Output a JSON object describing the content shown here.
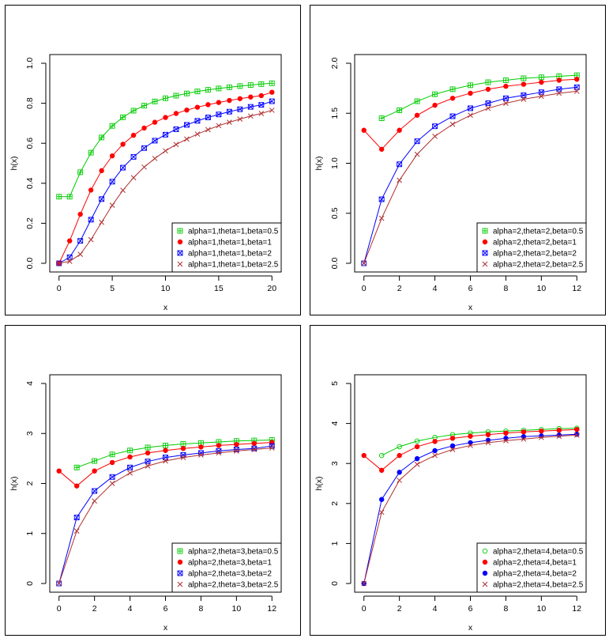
{
  "chart_data": [
    {
      "type": "line",
      "xlabel": "x",
      "ylabel": "h(x)",
      "xlim": [
        0,
        20
      ],
      "ylim": [
        0,
        1.0
      ],
      "xticks": [
        0,
        5,
        10,
        15,
        20
      ],
      "xtick_labels": [
        "0",
        "5",
        "10",
        "15",
        "20"
      ],
      "yticks": [
        0,
        0.2,
        0.4,
        0.6,
        0.8,
        1.0
      ],
      "ytick_labels": [
        "0.0",
        "0.2",
        "0.4",
        "0.6",
        "0.8",
        "1.0"
      ],
      "grid": false,
      "legend_position": "bottom-right",
      "x": [
        0,
        1,
        2,
        3,
        4,
        5,
        6,
        7,
        8,
        9,
        10,
        11,
        12,
        13,
        14,
        15,
        16,
        17,
        18,
        19,
        20
      ],
      "series": [
        {
          "name": "alpha=1,theta=1,beta=0.5",
          "color": "#00cc00",
          "marker": "square-plus",
          "values": [
            0.333,
            0.333,
            0.455,
            0.553,
            0.629,
            0.687,
            0.73,
            0.763,
            0.788,
            0.809,
            0.825,
            0.838,
            0.849,
            0.859,
            0.867,
            0.874,
            0.88,
            0.886,
            0.891,
            0.896,
            0.9
          ]
        },
        {
          "name": "alpha=1,theta=1,beta=1",
          "color": "#ff0000",
          "marker": "dot",
          "values": [
            0.0,
            0.112,
            0.245,
            0.366,
            0.463,
            0.537,
            0.595,
            0.64,
            0.676,
            0.705,
            0.729,
            0.749,
            0.766,
            0.78,
            0.793,
            0.804,
            0.814,
            0.823,
            0.831,
            0.838,
            0.855
          ]
        },
        {
          "name": "alpha=1,theta=1,beta=2",
          "color": "#0000ff",
          "marker": "square-x",
          "values": [
            0.0,
            0.03,
            0.112,
            0.218,
            0.321,
            0.408,
            0.478,
            0.532,
            0.576,
            0.613,
            0.643,
            0.67,
            0.692,
            0.712,
            0.729,
            0.744,
            0.758,
            0.77,
            0.782,
            0.792,
            0.81
          ]
        },
        {
          "name": "alpha=1,theta=1,beta=2.5",
          "color": "#b03030",
          "marker": "x",
          "values": [
            0.0,
            0.01,
            0.045,
            0.118,
            0.205,
            0.29,
            0.365,
            0.428,
            0.481,
            0.524,
            0.562,
            0.594,
            0.621,
            0.646,
            0.668,
            0.688,
            0.705,
            0.721,
            0.736,
            0.749,
            0.765
          ]
        }
      ]
    },
    {
      "type": "line",
      "xlabel": "x",
      "ylabel": "h(x)",
      "xlim": [
        0,
        12
      ],
      "ylim": [
        0,
        2.0
      ],
      "xticks": [
        0,
        2,
        4,
        6,
        8,
        10,
        12
      ],
      "xtick_labels": [
        "0",
        "2",
        "4",
        "6",
        "8",
        "10",
        "12"
      ],
      "yticks": [
        0,
        0.5,
        1.0,
        1.5,
        2.0
      ],
      "ytick_labels": [
        "0.0",
        "0.5",
        "1.0",
        "1.5",
        "2.0"
      ],
      "grid": false,
      "legend_position": "bottom-right",
      "x": [
        0,
        1,
        2,
        3,
        4,
        5,
        6,
        7,
        8,
        9,
        10,
        11,
        12
      ],
      "series": [
        {
          "name": "alpha=2,theta=2,beta=0.5",
          "color": "#00cc00",
          "marker": "square-plus",
          "values": [
            null,
            1.45,
            1.53,
            1.62,
            1.69,
            1.74,
            1.78,
            1.81,
            1.83,
            1.85,
            1.86,
            1.87,
            1.88
          ]
        },
        {
          "name": "alpha=2,theta=2,beta=1",
          "color": "#ff0000",
          "marker": "dot",
          "values": [
            1.33,
            1.14,
            1.33,
            1.48,
            1.58,
            1.65,
            1.7,
            1.74,
            1.77,
            1.79,
            1.81,
            1.83,
            1.84
          ]
        },
        {
          "name": "alpha=2,theta=2,beta=2",
          "color": "#0000ff",
          "marker": "square-x",
          "values": [
            0.0,
            0.64,
            0.99,
            1.22,
            1.37,
            1.47,
            1.55,
            1.6,
            1.65,
            1.68,
            1.71,
            1.74,
            1.76
          ]
        },
        {
          "name": "alpha=2,theta=2,beta=2.5",
          "color": "#b03030",
          "marker": "x",
          "values": [
            0.0,
            0.45,
            0.83,
            1.09,
            1.27,
            1.39,
            1.48,
            1.55,
            1.6,
            1.64,
            1.67,
            1.7,
            1.72
          ]
        }
      ]
    },
    {
      "type": "line",
      "xlabel": "x",
      "ylabel": "h(x)",
      "xlim": [
        0,
        12
      ],
      "ylim": [
        0,
        4
      ],
      "xticks": [
        0,
        2,
        4,
        6,
        8,
        10,
        12
      ],
      "xtick_labels": [
        "0",
        "2",
        "4",
        "6",
        "8",
        "10",
        "12"
      ],
      "yticks": [
        0,
        1,
        2,
        3,
        4
      ],
      "ytick_labels": [
        "0",
        "1",
        "2",
        "3",
        "4"
      ],
      "grid": false,
      "legend_position": "bottom-right",
      "x": [
        0,
        1,
        2,
        3,
        4,
        5,
        6,
        7,
        8,
        9,
        10,
        11,
        12
      ],
      "series": [
        {
          "name": "alpha=2,theta=3,beta=0.5",
          "color": "#00cc00",
          "marker": "square-plus",
          "values": [
            null,
            2.32,
            2.45,
            2.58,
            2.66,
            2.72,
            2.76,
            2.79,
            2.81,
            2.83,
            2.85,
            2.86,
            2.87
          ]
        },
        {
          "name": "alpha=2,theta=3,beta=1",
          "color": "#ff0000",
          "marker": "dot",
          "values": [
            2.25,
            1.95,
            2.25,
            2.42,
            2.53,
            2.61,
            2.66,
            2.7,
            2.73,
            2.76,
            2.78,
            2.8,
            2.82
          ]
        },
        {
          "name": "alpha=2,theta=3,beta=2",
          "color": "#0000ff",
          "marker": "square-x",
          "values": [
            0.0,
            1.32,
            1.85,
            2.13,
            2.32,
            2.44,
            2.52,
            2.57,
            2.61,
            2.65,
            2.68,
            2.7,
            2.75
          ]
        },
        {
          "name": "alpha=2,theta=3,beta=2.5",
          "color": "#b03030",
          "marker": "x",
          "values": [
            0.0,
            1.05,
            1.65,
            2.0,
            2.21,
            2.35,
            2.45,
            2.52,
            2.57,
            2.61,
            2.65,
            2.68,
            2.71
          ]
        }
      ]
    },
    {
      "type": "line",
      "xlabel": "x",
      "ylabel": "h(x)",
      "xlim": [
        0,
        12
      ],
      "ylim": [
        0,
        5
      ],
      "xticks": [
        0,
        2,
        4,
        6,
        8,
        10,
        12
      ],
      "xtick_labels": [
        "0",
        "2",
        "4",
        "6",
        "8",
        "10",
        "12"
      ],
      "yticks": [
        0,
        1,
        2,
        3,
        4,
        5
      ],
      "ytick_labels": [
        "0",
        "1",
        "2",
        "3",
        "4",
        "5"
      ],
      "grid": false,
      "legend_position": "bottom-right",
      "x": [
        0,
        1,
        2,
        3,
        4,
        5,
        6,
        7,
        8,
        9,
        10,
        11,
        12
      ],
      "series": [
        {
          "name": "alpha=2,theta=4,beta=0.5",
          "color": "#00cc00",
          "marker": "circle",
          "values": [
            null,
            3.2,
            3.42,
            3.56,
            3.65,
            3.72,
            3.76,
            3.79,
            3.81,
            3.83,
            3.85,
            3.87,
            3.88
          ]
        },
        {
          "name": "alpha=2,theta=4,beta=1",
          "color": "#ff0000",
          "marker": "dot",
          "values": [
            3.2,
            2.83,
            3.2,
            3.42,
            3.55,
            3.63,
            3.68,
            3.72,
            3.76,
            3.79,
            3.81,
            3.83,
            3.85
          ]
        },
        {
          "name": "alpha=2,theta=4,beta=2",
          "color": "#0000ff",
          "marker": "dot",
          "values": [
            0.0,
            2.1,
            2.78,
            3.12,
            3.32,
            3.44,
            3.52,
            3.58,
            3.63,
            3.67,
            3.69,
            3.71,
            3.73
          ]
        },
        {
          "name": "alpha=2,theta=4,beta=2.5",
          "color": "#b03030",
          "marker": "x",
          "values": [
            0.0,
            1.78,
            2.58,
            2.98,
            3.2,
            3.35,
            3.45,
            3.52,
            3.57,
            3.61,
            3.65,
            3.68,
            3.71
          ]
        }
      ]
    }
  ]
}
